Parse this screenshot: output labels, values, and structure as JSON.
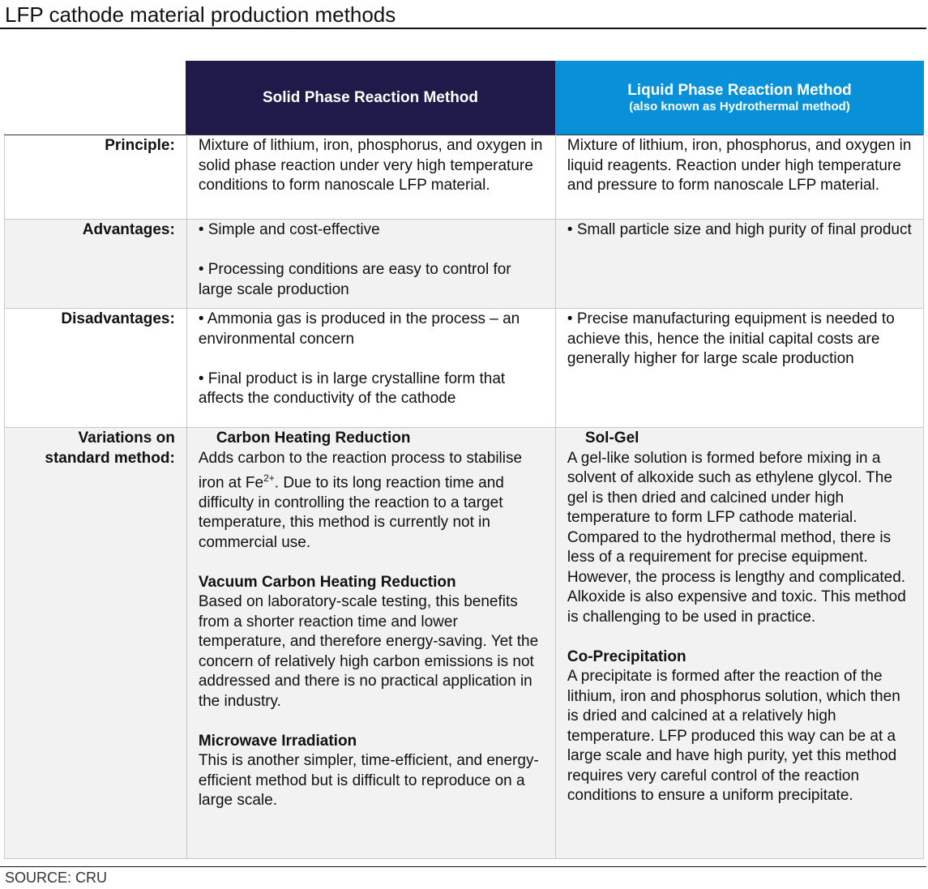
{
  "title": "LFP cathode material production methods",
  "columns": {
    "solid": {
      "title": "Solid Phase Reaction Method",
      "color": "#1f1a4a"
    },
    "liquid": {
      "title": "Liquid Phase Reaction Method",
      "subtitle": "(also known as Hydrothermal method)",
      "color": "#0891d9"
    }
  },
  "rows": {
    "principle": {
      "label": "Principle:",
      "solid": "Mixture of lithium, iron, phosphorus, and oxygen in solid phase reaction under very high temperature conditions to form nanoscale LFP material.",
      "liquid": "Mixture of lithium, iron, phosphorus, and oxygen in liquid reagents. Reaction under high temperature and pressure to form nanoscale LFP material."
    },
    "advantages": {
      "label": "Advantages:",
      "solid": [
        "• Simple and cost-effective",
        "• Processing conditions are easy to control for large scale production"
      ],
      "liquid": [
        "• Small particle size and high purity of final product"
      ]
    },
    "disadvantages": {
      "label": "Disadvantages:",
      "solid": [
        "• Ammonia gas is produced in the process – an environmental concern",
        "• Final product is in large crystalline form that affects the conductivity of the cathode"
      ],
      "liquid": [
        "• Precise manufacturing equipment is needed to achieve this, hence the initial capital costs are generally higher for large scale production"
      ]
    },
    "variations": {
      "label_line1": "Variations on",
      "label_line2": "standard method:",
      "solid": [
        {
          "heading": "Carbon Heating Reduction",
          "text_before": "Adds carbon to the reaction process to stabilise iron at Fe",
          "sup": "2+",
          "text_after": ". Due to its long reaction time and difficulty in controlling the reaction to a target temperature, this method is currently not in commercial use."
        },
        {
          "heading": "Vacuum Carbon Heating Reduction",
          "text": "Based on laboratory-scale testing, this benefits from a shorter reaction time and lower temperature, and therefore energy-saving. Yet the concern of relatively high carbon emissions is not addressed and there is no practical application in the industry."
        },
        {
          "heading": "Microwave Irradiation",
          "text": "This is another simpler, time-efficient, and energy-efficient method but is difficult to reproduce on a large scale."
        }
      ],
      "liquid": [
        {
          "heading": "Sol-Gel",
          "text": "A gel-like solution is formed before mixing in a solvent of alkoxide such as ethylene glycol. The gel is then dried and calcined under high temperature to form LFP cathode material. Compared to the hydrothermal method, there is less of a requirement for precise equipment. However, the process is lengthy and complicated. Alkoxide is also expensive and toxic. This method is challenging to be used in practice."
        },
        {
          "heading": "Co-Precipitation",
          "text": "A precipitate is formed after the reaction of the lithium, iron and phosphorus solution, which then is dried and calcined at a relatively high temperature. LFP produced this way can be at a large scale and have high purity, yet this method requires very careful control of the reaction conditions to ensure a uniform precipitate."
        }
      ]
    }
  },
  "source": "SOURCE: CRU"
}
